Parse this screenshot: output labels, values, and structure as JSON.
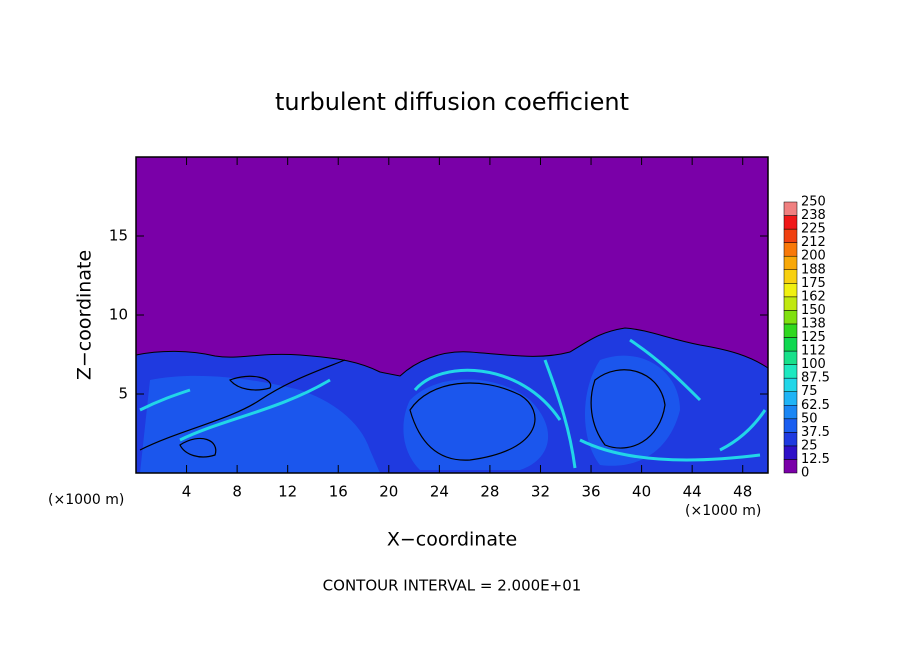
{
  "chart_data": {
    "type": "contour",
    "title": "turbulent diffusion coefficient",
    "x_label": "X−coordinate",
    "y_label": "Z−coordinate",
    "x_unit": "(×1000 m)",
    "y_unit": "(×1000 m)",
    "note": "CONTOUR INTERVAL = 2.000E+01",
    "xlim": [
      0,
      50
    ],
    "xticks": [
      4,
      8,
      12,
      16,
      20,
      24,
      28,
      32,
      36,
      40,
      44,
      48
    ],
    "ylim": [
      0,
      20
    ],
    "yticks": [
      5,
      10,
      15
    ],
    "colorbar": {
      "levels": [
        0,
        12.5,
        25,
        37.5,
        50,
        62.5,
        75,
        87.5,
        100,
        {
          "value": 112.5,
          "label": "112"
        },
        125,
        {
          "value": 137.5,
          "label": "138"
        },
        150,
        {
          "value": 162.5,
          "label": "162"
        },
        175,
        {
          "value": 187.5,
          "label": "188"
        },
        200,
        {
          "value": 212.5,
          "label": "212"
        },
        225,
        {
          "value": 237.5,
          "label": "238"
        },
        250
      ],
      "colors": [
        "#7a00a8",
        "#2f10c8",
        "#1f3ae0",
        "#1a5ef0",
        "#1a86f4",
        "#20b4f6",
        "#22d6e8",
        "#1ee8c0",
        "#18e08a",
        "#10d850",
        "#30d820",
        "#80e010",
        "#c0e810",
        "#f0f010",
        "#f8d010",
        "#f8a808",
        "#f87808",
        "#f04010",
        "#f01818",
        "#f08080"
      ]
    }
  }
}
